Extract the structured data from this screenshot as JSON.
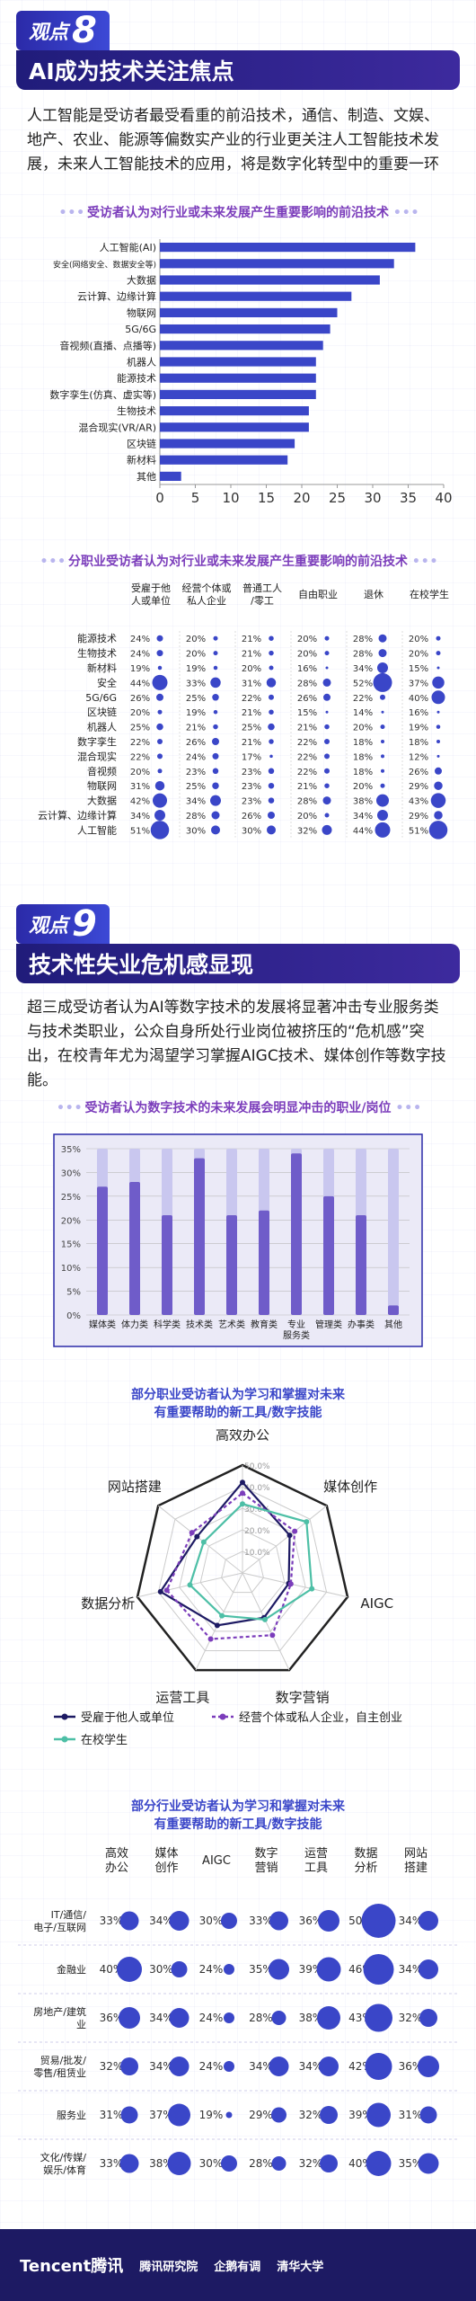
{
  "section8": {
    "badge_label": "观点",
    "badge_num": "8",
    "title": "AI成为技术关注焦点",
    "intro": "人工智能是受访者最受看重的前沿技术，通信、制造、文娱、地产、农业、能源等偏数实产业的行业更关注人工智能技术发展，未来人工智能技术的应用，将是数字化转型中的重要一环",
    "chart1_heading": "受访者认为对行业或未来发展产生重要影响的前沿技术",
    "chart2_heading": "分职业受访者认为对行业或未来发展产生重要影响的前沿技术"
  },
  "section9": {
    "badge_label": "观点",
    "badge_num": "9",
    "title": "技术性失业危机感显现",
    "intro": "超三成受访者认为AI等数字技术的发展将显著冲击专业服务类与技术类职业，公众自身所处行业岗位被挤压的“危机感”突出，在校青年尤为渴望学习掌握AIGC技术、媒体创作等数字技能。",
    "chart3_heading": "受访者认为数字技术的未来发展会明显冲击的职业/岗位",
    "chart4_heading_l1": "部分职业受访者认为学习和掌握对未来",
    "chart4_heading_l2": "有重要帮助的新工具/数字技能",
    "chart5_heading_l1": "部分行业受访者认为学习和掌握对未来",
    "chart5_heading_l2": "有重要帮助的新工具/数字技能"
  },
  "footer": {
    "logos": [
      "Tencent腾讯",
      "腾讯研究院",
      "企鹅有调",
      "清华大学"
    ]
  },
  "colors": {
    "navy": "#1d1a63",
    "bar": "#3a46c8",
    "purple": "#7b3dbb",
    "teal": "#4dbfa6"
  },
  "chart_data": [
    {
      "type": "bar",
      "orientation": "horizontal",
      "categories": [
        "人工智能(AI)",
        "安全(网络安全、数据安全等)",
        "大数据",
        "云计算、边缘计算",
        "物联网",
        "5G/6G",
        "音视频(直播、点播等)",
        "机器人",
        "能源技术",
        "数字孪生(仿真、虚实等)",
        "生物技术",
        "混合现实(VR/AR)",
        "区块链",
        "新材料",
        "其他"
      ],
      "values": [
        36,
        33,
        31,
        27,
        25,
        24,
        23,
        22,
        22,
        22,
        21,
        21,
        19,
        18,
        3
      ],
      "xlim": [
        0,
        40
      ],
      "xticks": [
        0,
        5,
        10,
        15,
        20,
        25,
        30,
        35,
        40
      ]
    },
    {
      "type": "table",
      "columns": [
        "受雇于他人或单位",
        "经营个体或私人企业",
        "普通工人/零工",
        "自由职业",
        "退休",
        "在校学生"
      ],
      "rows": [
        {
          "label": "能源技术",
          "values": [
            24,
            20,
            21,
            20,
            28,
            20
          ]
        },
        {
          "label": "生物技术",
          "values": [
            24,
            20,
            21,
            20,
            28,
            20
          ]
        },
        {
          "label": "新材料",
          "values": [
            19,
            19,
            20,
            16,
            34,
            15
          ]
        },
        {
          "label": "安全",
          "values": [
            44,
            33,
            31,
            28,
            52,
            37
          ]
        },
        {
          "label": "5G/6G",
          "values": [
            26,
            25,
            22,
            26,
            22,
            40
          ]
        },
        {
          "label": "区块链",
          "values": [
            20,
            19,
            21,
            15,
            14,
            16
          ]
        },
        {
          "label": "机器人",
          "values": [
            25,
            21,
            25,
            21,
            20,
            19
          ]
        },
        {
          "label": "数字孪生",
          "values": [
            22,
            26,
            21,
            22,
            18,
            18
          ]
        },
        {
          "label": "混合现实",
          "values": [
            22,
            24,
            17,
            22,
            18,
            12
          ]
        },
        {
          "label": "音视频",
          "values": [
            20,
            23,
            23,
            22,
            18,
            26
          ]
        },
        {
          "label": "物联网",
          "values": [
            31,
            25,
            23,
            21,
            20,
            29
          ]
        },
        {
          "label": "大数据",
          "values": [
            42,
            34,
            23,
            28,
            38,
            43
          ]
        },
        {
          "label": "云计算、边缘计算",
          "values": [
            34,
            28,
            26,
            20,
            34,
            29
          ]
        },
        {
          "label": "人工智能",
          "values": [
            51,
            30,
            30,
            32,
            44,
            51
          ]
        }
      ]
    },
    {
      "type": "bar",
      "categories": [
        "媒体类",
        "体力类",
        "科学类",
        "技术类",
        "艺术类",
        "教育类",
        "专业服务类",
        "管理类",
        "办事类",
        "其他"
      ],
      "values": [
        27,
        28,
        21,
        33,
        21,
        22,
        34,
        25,
        21,
        2
      ],
      "ylim": [
        0,
        35
      ],
      "yticks": [
        0,
        5,
        10,
        15,
        20,
        25,
        30,
        35
      ],
      "ytick_labels": [
        "0%",
        "5%",
        "10%",
        "15%",
        "20%",
        "25%",
        "30%",
        "35%"
      ]
    },
    {
      "type": "radar",
      "axes": [
        "高效办公",
        "媒体创作",
        "AIGC",
        "数字营销",
        "运营工具",
        "数据分析",
        "网站搭建"
      ],
      "rlim": [
        0,
        50
      ],
      "rticks": [
        "0.0%",
        "10.0%",
        "20.0%",
        "30.0%",
        "40.0%",
        "50.0%"
      ],
      "series": [
        {
          "name": "受雇于他人或单位",
          "values": [
            42,
            28,
            22,
            23,
            27,
            39,
            27
          ]
        },
        {
          "name": "经营个体或私人企业，自主创业",
          "values": [
            37,
            31,
            23,
            32,
            34,
            36,
            30
          ]
        },
        {
          "name": "在校学生",
          "values": [
            32,
            38,
            33,
            24,
            22,
            25,
            23
          ]
        }
      ]
    },
    {
      "type": "table",
      "columns": [
        "高效办公",
        "媒体创作",
        "AIGC",
        "数字营销",
        "运营工具",
        "数据分析",
        "网站搭建"
      ],
      "rows": [
        {
          "label": "IT/通信/电子/互联网",
          "values": [
            33,
            34,
            30,
            33,
            36,
            50,
            34
          ]
        },
        {
          "label": "金融业",
          "values": [
            40,
            30,
            24,
            35,
            39,
            46,
            34
          ]
        },
        {
          "label": "房地产/建筑业",
          "values": [
            36,
            34,
            24,
            28,
            38,
            43,
            32
          ]
        },
        {
          "label": "贸易/批发/零售/租赁业",
          "values": [
            32,
            34,
            24,
            34,
            34,
            42,
            36
          ]
        },
        {
          "label": "服务业",
          "values": [
            31,
            37,
            19,
            29,
            32,
            39,
            31
          ]
        },
        {
          "label": "文化/传媒/娱乐/体育",
          "values": [
            33,
            38,
            30,
            28,
            32,
            40,
            35
          ]
        }
      ]
    }
  ]
}
